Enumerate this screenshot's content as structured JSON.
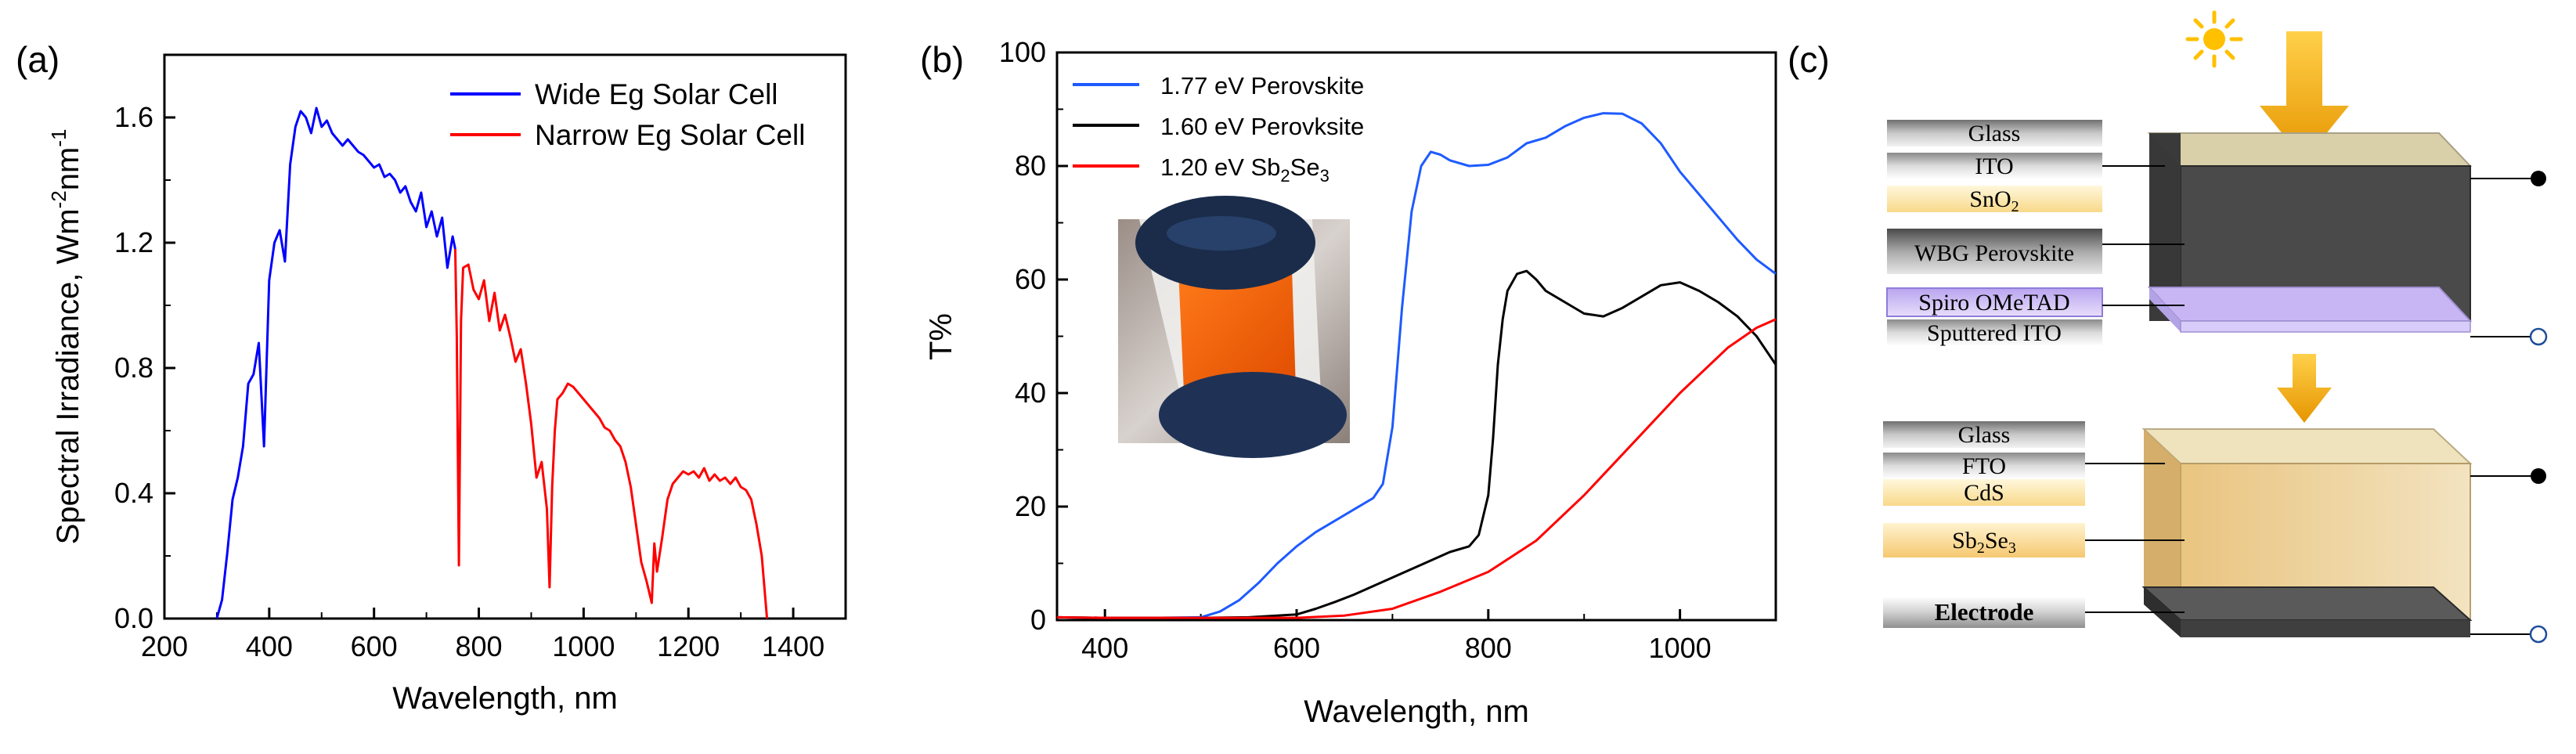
{
  "panel_labels": {
    "a": "(a)",
    "b": "(b)",
    "c": "(c)"
  },
  "colors": {
    "wide": "#0000FF",
    "narrow": "#FF0000",
    "pvk177": "#1E5BFF",
    "pvk160": "#000000",
    "sbse": "#FF0000",
    "sun": "#FFC000",
    "arrow": "#F2A800"
  },
  "chart_data": [
    {
      "type": "line",
      "panel": "a",
      "title": "",
      "xlabel": "Wavelength, nm",
      "ylabel": "Spectral Irradiance, Wm",
      "ylabel_sup1": "-2",
      "ylabel_mid": "nm",
      "ylabel_sup2": "-1",
      "xlim": [
        200,
        1500
      ],
      "ylim": [
        0,
        1.8
      ],
      "xticks": [
        "200",
        "400",
        "600",
        "800",
        "1000",
        "1200",
        "1400"
      ],
      "xtick_values": [
        200,
        400,
        600,
        800,
        1000,
        1200,
        1400
      ],
      "yticks": [
        "0.0",
        "0.4",
        "0.8",
        "1.2",
        "1.6"
      ],
      "ytick_values": [
        0,
        0.4,
        0.8,
        1.2,
        1.6
      ],
      "legend_position": "top-right",
      "series": [
        {
          "name": "Wide Eg Solar Cell",
          "color_key": "wide",
          "x": [
            300,
            310,
            320,
            330,
            340,
            350,
            360,
            370,
            380,
            390,
            400,
            410,
            420,
            430,
            440,
            450,
            460,
            470,
            480,
            490,
            500,
            510,
            520,
            530,
            540,
            550,
            560,
            570,
            580,
            590,
            600,
            610,
            620,
            630,
            640,
            650,
            660,
            670,
            680,
            690,
            700,
            710,
            720,
            730,
            740,
            750,
            755
          ],
          "y": [
            0.0,
            0.06,
            0.21,
            0.38,
            0.45,
            0.55,
            0.75,
            0.78,
            0.88,
            0.55,
            1.08,
            1.2,
            1.24,
            1.14,
            1.45,
            1.57,
            1.62,
            1.6,
            1.55,
            1.63,
            1.57,
            1.59,
            1.55,
            1.53,
            1.51,
            1.53,
            1.51,
            1.49,
            1.48,
            1.46,
            1.44,
            1.45,
            1.41,
            1.42,
            1.4,
            1.36,
            1.38,
            1.33,
            1.3,
            1.36,
            1.25,
            1.3,
            1.22,
            1.28,
            1.12,
            1.22,
            1.18
          ]
        },
        {
          "name": "Narrow Eg Solar Cell",
          "color_key": "narrow",
          "x": [
            755,
            758,
            762,
            766,
            770,
            780,
            790,
            800,
            810,
            820,
            830,
            840,
            850,
            860,
            870,
            880,
            890,
            900,
            910,
            920,
            930,
            935,
            940,
            945,
            950,
            960,
            970,
            980,
            990,
            1000,
            1010,
            1020,
            1030,
            1040,
            1050,
            1060,
            1070,
            1080,
            1090,
            1100,
            1110,
            1120,
            1130,
            1135,
            1140,
            1150,
            1160,
            1170,
            1180,
            1190,
            1200,
            1210,
            1220,
            1230,
            1240,
            1250,
            1260,
            1270,
            1280,
            1290,
            1300,
            1310,
            1320,
            1330,
            1340,
            1350
          ],
          "y": [
            1.18,
            0.9,
            0.17,
            0.95,
            1.12,
            1.13,
            1.05,
            1.02,
            1.08,
            0.95,
            1.04,
            0.92,
            0.97,
            0.9,
            0.82,
            0.86,
            0.75,
            0.62,
            0.45,
            0.5,
            0.35,
            0.1,
            0.42,
            0.6,
            0.7,
            0.72,
            0.75,
            0.74,
            0.72,
            0.7,
            0.68,
            0.66,
            0.64,
            0.61,
            0.6,
            0.57,
            0.55,
            0.5,
            0.42,
            0.3,
            0.18,
            0.12,
            0.05,
            0.24,
            0.15,
            0.26,
            0.38,
            0.43,
            0.45,
            0.47,
            0.46,
            0.47,
            0.45,
            0.48,
            0.44,
            0.46,
            0.44,
            0.45,
            0.43,
            0.45,
            0.42,
            0.41,
            0.38,
            0.3,
            0.2,
            0.0
          ]
        }
      ]
    },
    {
      "type": "line",
      "panel": "b",
      "title": "",
      "xlabel": "Wavelength, nm",
      "ylabel": "T%",
      "xlim": [
        350,
        1100
      ],
      "ylim": [
        0,
        100
      ],
      "xticks": [
        "400",
        "600",
        "800",
        "1000"
      ],
      "xtick_values": [
        400,
        600,
        800,
        1000
      ],
      "yticks": [
        "0",
        "20",
        "40",
        "60",
        "80",
        "100"
      ],
      "ytick_values": [
        0,
        20,
        40,
        60,
        80,
        100
      ],
      "legend_position": "top-left",
      "series": [
        {
          "name": "1.77 eV Perovskite",
          "color_key": "pvk177",
          "x": [
            350,
            400,
            450,
            500,
            520,
            540,
            560,
            580,
            600,
            620,
            640,
            660,
            680,
            690,
            700,
            710,
            720,
            730,
            740,
            750,
            760,
            780,
            800,
            820,
            840,
            860,
            880,
            900,
            920,
            940,
            960,
            980,
            1000,
            1020,
            1040,
            1060,
            1080,
            1100
          ],
          "y": [
            0.5,
            0.4,
            0.4,
            0.5,
            1.5,
            3.5,
            6.5,
            10.0,
            13.0,
            15.5,
            17.5,
            19.5,
            21.5,
            24.0,
            34.0,
            55.0,
            72.0,
            80.0,
            82.5,
            82.0,
            81.0,
            80.0,
            80.2,
            81.5,
            84.0,
            85.0,
            87.0,
            88.5,
            89.3,
            89.2,
            87.5,
            84.0,
            79.0,
            75.0,
            71.0,
            67.0,
            63.5,
            61.0
          ]
        },
        {
          "name": "1.60 eV Perovksite",
          "color_key": "pvk160",
          "x": [
            350,
            400,
            500,
            550,
            600,
            620,
            640,
            660,
            680,
            700,
            720,
            740,
            760,
            780,
            790,
            800,
            805,
            810,
            815,
            820,
            830,
            840,
            850,
            860,
            880,
            900,
            920,
            940,
            960,
            980,
            1000,
            1020,
            1040,
            1060,
            1080,
            1100
          ],
          "y": [
            0.5,
            0.4,
            0.4,
            0.5,
            1.0,
            2.0,
            3.2,
            4.5,
            6.0,
            7.5,
            9.0,
            10.5,
            12.0,
            13.0,
            15.0,
            22.0,
            32.0,
            45.0,
            53.0,
            58.0,
            61.0,
            61.5,
            60.0,
            58.0,
            56.0,
            54.0,
            53.5,
            55.0,
            57.0,
            59.0,
            59.5,
            58.0,
            56.0,
            53.5,
            50.0,
            45.0
          ]
        },
        {
          "name": "1.20 eV Sb2Se3",
          "color_key": "sbse",
          "x": [
            350,
            400,
            500,
            600,
            650,
            700,
            750,
            800,
            850,
            900,
            950,
            1000,
            1050,
            1080,
            1100
          ],
          "y": [
            0.5,
            0.4,
            0.4,
            0.4,
            0.8,
            2.0,
            5.0,
            8.5,
            14.0,
            22.0,
            31.0,
            40.0,
            48.0,
            51.5,
            53.0
          ]
        }
      ]
    }
  ],
  "legend_b": {
    "pvk177": "1.77 eV Perovskite",
    "pvk160": "1.60 eV Perovksite",
    "sbse_prefix": "1.20 eV Sb",
    "sbse_sub1": "2",
    "sbse_mid": "Se",
    "sbse_sub2": "3"
  },
  "inset_photo": {
    "description_icon": "device-photo"
  },
  "device_top": {
    "layers": [
      "Glass",
      "ITO",
      "SnO",
      "WBG Perovskite",
      "Spiro OMeTAD",
      "Sputtered ITO"
    ],
    "sno_sub": "2"
  },
  "device_bottom": {
    "layers": [
      "Glass",
      "FTO",
      "CdS",
      "Sb",
      "Electrode"
    ],
    "sb_sub": "2",
    "se_text": "Se",
    "se_sub": "3"
  },
  "icons": {
    "sun": "sun-icon",
    "arrow": "down-arrow-icon",
    "terminal_filled": "terminal-filled-icon",
    "terminal_open": "terminal-open-icon"
  }
}
